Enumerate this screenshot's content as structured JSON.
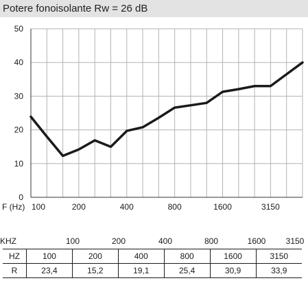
{
  "header": {
    "title": "Potere fonoisolante Rw = 26 dB"
  },
  "chart_data": {
    "type": "line",
    "title": "",
    "xlabel": "F (Hz)",
    "ylabel": "",
    "x_tick_labels": [
      "100",
      "200",
      "400",
      "800",
      "1600",
      "3150"
    ],
    "y_ticks": [
      0,
      10,
      20,
      30,
      40,
      50
    ],
    "ylim": [
      0,
      50
    ],
    "grid": true,
    "x": [
      "100",
      "125",
      "160",
      "200",
      "250",
      "315",
      "400",
      "500",
      "630",
      "800",
      "1000",
      "1250",
      "1600",
      "2000",
      "2500",
      "3150",
      "4000",
      "5000"
    ],
    "series": [
      {
        "color": "#1a1a1a",
        "values": [
          23.9,
          18,
          12.3,
          14.2,
          16.9,
          15.0,
          19.7,
          20.8,
          23.6,
          26.6,
          27.3,
          28.0,
          31.3,
          32.1,
          33.0,
          33.0,
          36.5,
          40.0
        ]
      }
    ]
  },
  "table": {
    "top_labels": [
      "KHZ",
      "100",
      "200",
      "400",
      "800",
      "1600",
      "3150"
    ],
    "rows": [
      {
        "label": "HZ",
        "cells": [
          "100",
          "200",
          "400",
          "800",
          "1600",
          "3150"
        ]
      },
      {
        "label": "R",
        "cells": [
          "23,4",
          "15,2",
          "19,1",
          "25,4",
          "30,9",
          "33,9"
        ]
      }
    ]
  }
}
